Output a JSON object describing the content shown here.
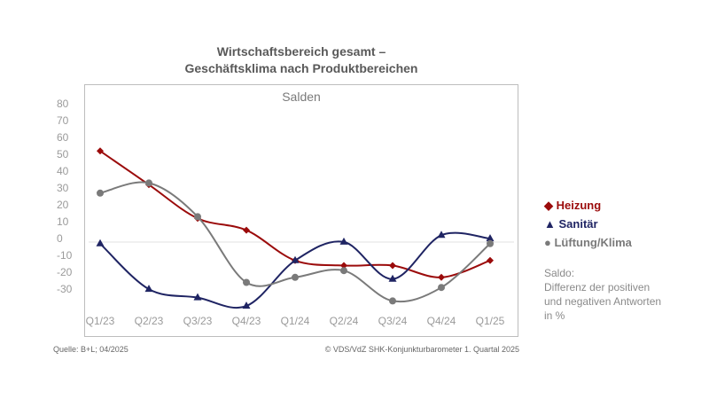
{
  "chart_data": {
    "type": "line",
    "title": "Wirtschaftsbereich gesamt –",
    "subtitle": "Geschäftsklima nach Produktbereichen",
    "plot_label": "Salden",
    "categories": [
      "Q1/23",
      "Q2/23",
      "Q3/23",
      "Q4/23",
      "Q1/24",
      "Q2/24",
      "Q3/24",
      "Q4/24",
      "Q1/25"
    ],
    "yticks": [
      80,
      70,
      60,
      50,
      40,
      30,
      20,
      10,
      0,
      -10,
      -20,
      -30
    ],
    "ylim": [
      -40,
      80
    ],
    "series": [
      {
        "name": "Heizung",
        "color": "#9b0b0b",
        "marker": "diamond",
        "values": [
          53,
          33,
          13,
          6,
          -12,
          -15,
          -15,
          -22,
          -12
        ]
      },
      {
        "name": "Sanitär",
        "color": "#1f2463",
        "marker": "triangle",
        "values": [
          -2,
          -29,
          -34,
          -39,
          -12,
          -1,
          -23,
          3,
          1
        ]
      },
      {
        "name": "Lüftung/Klima",
        "color": "#7a7a7a",
        "marker": "circle",
        "values": [
          28,
          34,
          14,
          -25,
          -22,
          -18,
          -36,
          -28,
          -2
        ]
      }
    ],
    "legend_placement": "right",
    "note": [
      "Saldo:",
      "Differenz der positiven",
      "und negativen Antworten",
      "in %"
    ]
  },
  "footer": {
    "source": "Quelle: B+L; 04/2025",
    "copyright": "© VDS/VdZ SHK-Konjunkturbarometer 1. Quartal 2025"
  }
}
